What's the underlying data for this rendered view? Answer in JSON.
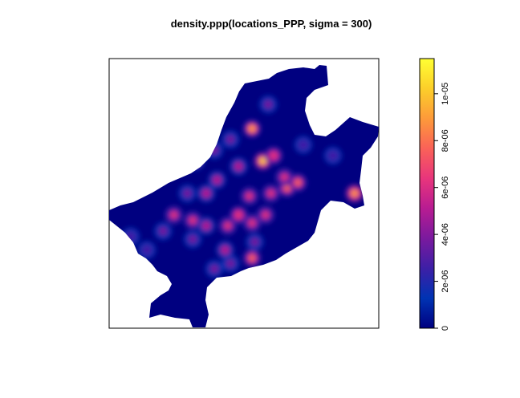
{
  "chart_data": {
    "type": "heatmap",
    "title": "density.ppp(locations_PPP, sigma = 300)",
    "xlabel": "",
    "ylabel": "",
    "colorbar": {
      "min": 0,
      "max": 1.15e-05,
      "ticks": [
        {
          "value": 0,
          "label": "0"
        },
        {
          "value": 2e-06,
          "label": "2e-06"
        },
        {
          "value": 4e-06,
          "label": "4e-06"
        },
        {
          "value": 6e-06,
          "label": "6e-06"
        },
        {
          "value": 8e-06,
          "label": "8e-06"
        },
        {
          "value": 1e-05,
          "label": "1e-05"
        }
      ],
      "colors": [
        "#000080",
        "#0033b3",
        "#3d1fa6",
        "#7a1a9e",
        "#b81c92",
        "#e8357c",
        "#fa6258",
        "#fd9a3a",
        "#fccf2a",
        "#ffff33"
      ]
    },
    "hotspots": [
      {
        "x": 0.53,
        "y": 0.26,
        "value": 9e-06
      },
      {
        "x": 0.57,
        "y": 0.38,
        "value": 1e-05
      },
      {
        "x": 0.61,
        "y": 0.36,
        "value": 7e-06
      },
      {
        "x": 0.66,
        "y": 0.48,
        "value": 8e-06
      },
      {
        "x": 0.7,
        "y": 0.46,
        "value": 7.5e-06
      },
      {
        "x": 0.6,
        "y": 0.5,
        "value": 6e-06
      },
      {
        "x": 0.52,
        "y": 0.51,
        "value": 6e-06
      },
      {
        "x": 0.48,
        "y": 0.58,
        "value": 7e-06
      },
      {
        "x": 0.44,
        "y": 0.62,
        "value": 6e-06
      },
      {
        "x": 0.36,
        "y": 0.5,
        "value": 5e-06
      },
      {
        "x": 0.4,
        "y": 0.45,
        "value": 5e-06
      },
      {
        "x": 0.48,
        "y": 0.4,
        "value": 5e-06
      },
      {
        "x": 0.45,
        "y": 0.3,
        "value": 4e-06
      },
      {
        "x": 0.39,
        "y": 0.34,
        "value": 4e-06
      },
      {
        "x": 0.32,
        "y": 0.38,
        "value": 5e-06
      },
      {
        "x": 0.29,
        "y": 0.5,
        "value": 4e-06
      },
      {
        "x": 0.24,
        "y": 0.58,
        "value": 6e-06
      },
      {
        "x": 0.2,
        "y": 0.64,
        "value": 4e-06
      },
      {
        "x": 0.31,
        "y": 0.6,
        "value": 6e-06
      },
      {
        "x": 0.36,
        "y": 0.62,
        "value": 5e-06
      },
      {
        "x": 0.53,
        "y": 0.61,
        "value": 6e-06
      },
      {
        "x": 0.58,
        "y": 0.58,
        "value": 6e-06
      },
      {
        "x": 0.54,
        "y": 0.68,
        "value": 4e-06
      },
      {
        "x": 0.43,
        "y": 0.71,
        "value": 5e-06
      },
      {
        "x": 0.53,
        "y": 0.74,
        "value": 8e-06
      },
      {
        "x": 0.45,
        "y": 0.76,
        "value": 4e-06
      },
      {
        "x": 0.39,
        "y": 0.78,
        "value": 4e-06
      },
      {
        "x": 0.31,
        "y": 0.67,
        "value": 4e-06
      },
      {
        "x": 0.14,
        "y": 0.71,
        "value": 3e-06
      },
      {
        "x": 0.08,
        "y": 0.66,
        "value": 3e-06
      },
      {
        "x": 0.91,
        "y": 0.5,
        "value": 9.5e-06
      },
      {
        "x": 0.83,
        "y": 0.36,
        "value": 3e-06
      },
      {
        "x": 0.72,
        "y": 0.32,
        "value": 3e-06
      },
      {
        "x": 0.59,
        "y": 0.17,
        "value": 4e-06
      },
      {
        "x": 0.65,
        "y": 0.44,
        "value": 6e-06
      }
    ]
  }
}
